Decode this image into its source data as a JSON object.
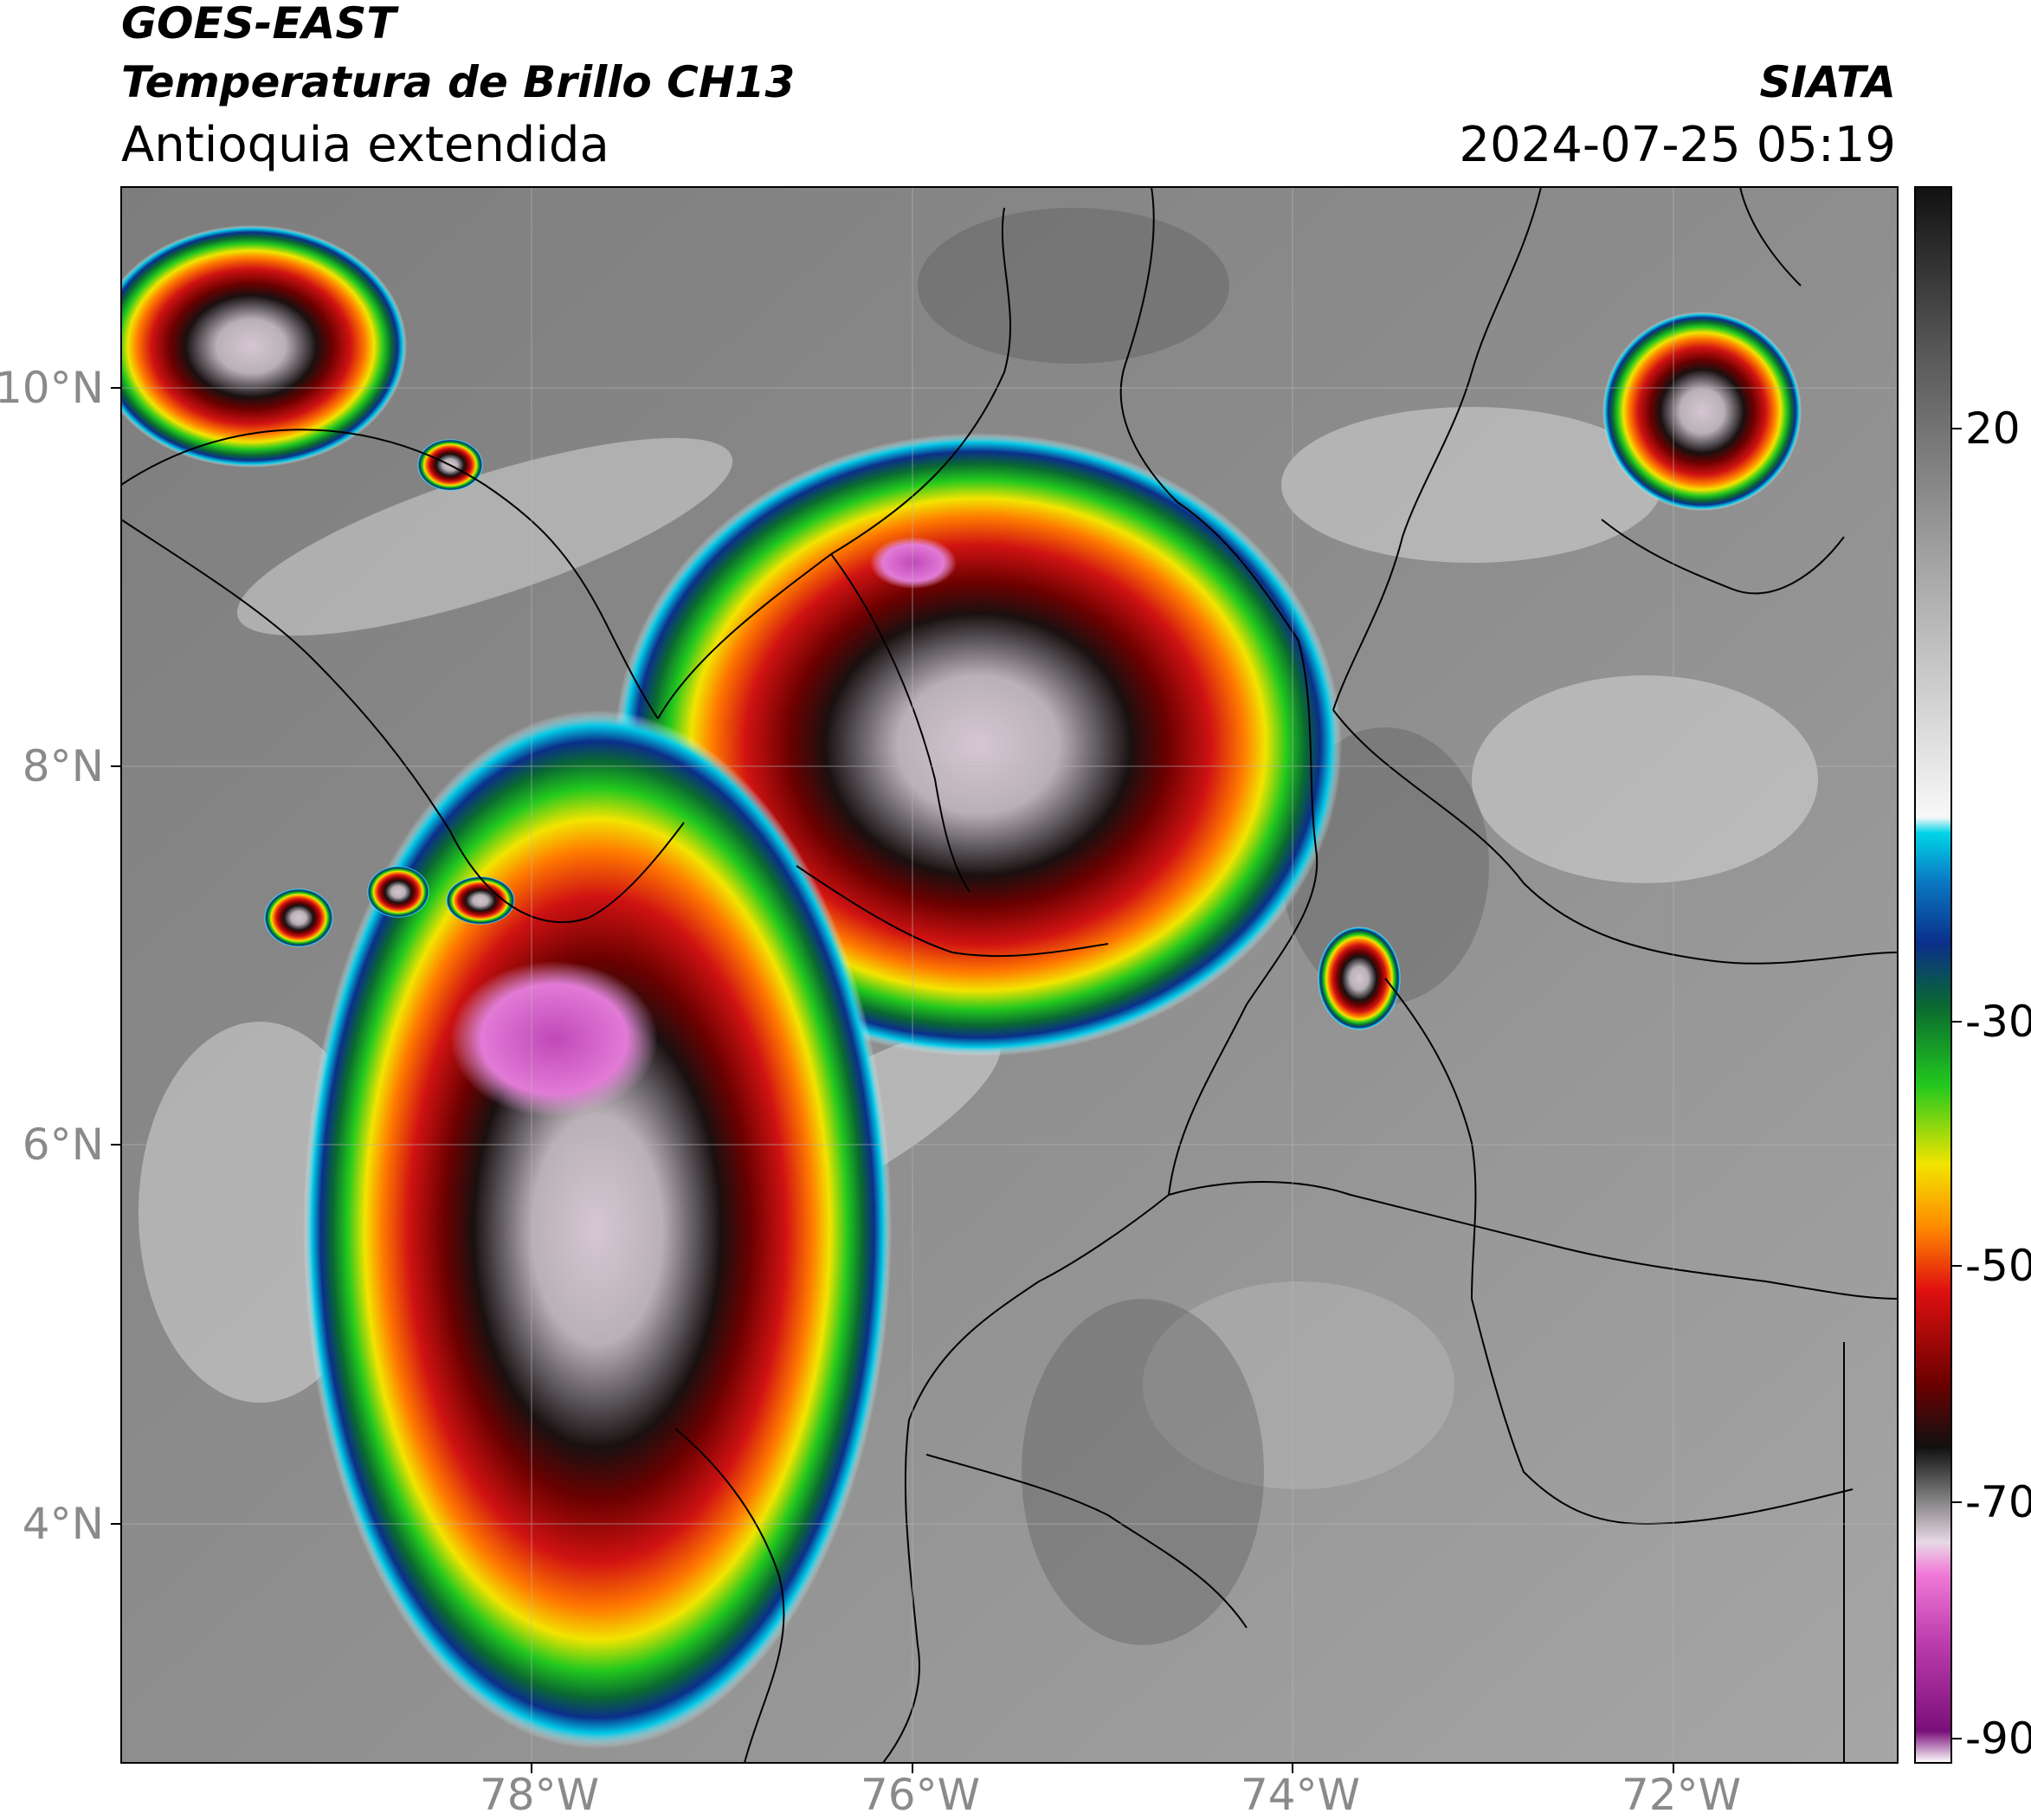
{
  "header": {
    "satellite": "GOES-EAST",
    "product": "Temperatura de Brillo CH13",
    "region": "Antioquia extendida",
    "agency": "SIATA",
    "datetime": "2024-07-25 05:19"
  },
  "map": {
    "lat_labels": [
      "10°N",
      "8°N",
      "6°N",
      "4°N"
    ],
    "lon_labels": [
      "78°W",
      "76°W",
      "74°W",
      "72°W"
    ],
    "lat_range": [
      2.6,
      10.7
    ],
    "lon_range": [
      -80.2,
      -70.8
    ]
  },
  "colorbar": {
    "ticks": [
      "20",
      "-30",
      "-50",
      "-70",
      "-90"
    ],
    "range": [
      -90,
      30
    ],
    "colors": {
      "warm_black": "#111111",
      "gray": "#9a9a9a",
      "white": "#f5f5f5",
      "cyan": "#00d4e8",
      "blue": "#0b2f8a",
      "green": "#22c81e",
      "yellow": "#f2e400",
      "orange": "#ff8a00",
      "red": "#e01010",
      "dark_red": "#5a0000",
      "pink": "#e25cc8",
      "purple": "#7a0f7a"
    }
  }
}
